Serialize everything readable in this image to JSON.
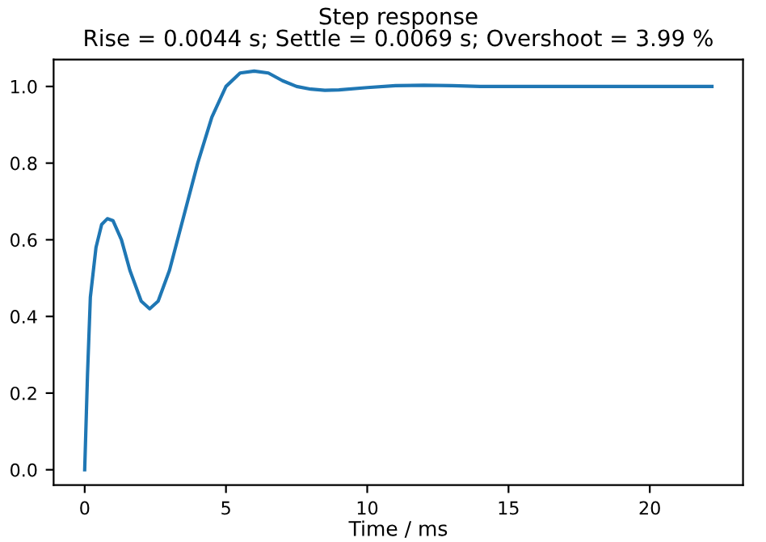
{
  "chart_data": {
    "type": "line",
    "title": "Step response\nRise = 0.0044 s; Settle = 0.0069 s; Overshoot = 3.99 %",
    "xlabel": "Time / ms",
    "series": [
      {
        "color": "#1f77b4",
        "x": [
          0,
          0.1,
          0.2,
          0.4,
          0.6,
          0.8,
          1.0,
          1.3,
          1.6,
          2.0,
          2.3,
          2.6,
          3.0,
          3.5,
          4.0,
          4.5,
          5.0,
          5.5,
          6.0,
          6.5,
          7.0,
          7.5,
          8.0,
          8.5,
          9.0,
          10,
          11,
          12,
          13,
          14,
          16,
          18,
          20,
          22.2
        ],
        "values": [
          0,
          0.25,
          0.45,
          0.58,
          0.64,
          0.655,
          0.65,
          0.6,
          0.52,
          0.44,
          0.42,
          0.44,
          0.52,
          0.66,
          0.8,
          0.92,
          1.0,
          1.035,
          1.04,
          1.035,
          1.015,
          1.0,
          0.993,
          0.99,
          0.991,
          0.997,
          1.002,
          1.003,
          1.002,
          1.0,
          1.0,
          1.0,
          1.0,
          1.0
        ]
      }
    ],
    "xlim": [
      -1.1,
      23.3
    ],
    "ylim": [
      -0.04,
      1.07
    ],
    "xticks": [
      0,
      5,
      10,
      15,
      20
    ],
    "yticks": [
      {
        "value": 0,
        "label": "0.0"
      },
      {
        "value": 0.2,
        "label": "0.2"
      },
      {
        "value": 0.4,
        "label": "0.4"
      },
      {
        "value": 0.6,
        "label": "0.6"
      },
      {
        "value": 0.8,
        "label": "0.8"
      },
      {
        "value": 1.0,
        "label": "1.0"
      }
    ],
    "grid": false,
    "legend": false
  }
}
